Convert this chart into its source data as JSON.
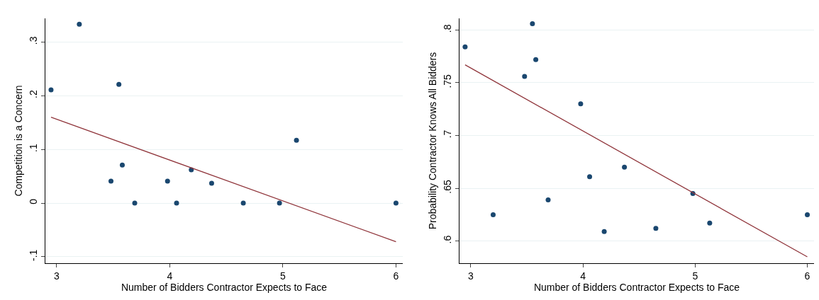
{
  "chart_data": [
    {
      "type": "scatter",
      "xlabel": "Number of Bidders Contractor Expects to Face",
      "ylabel": "Competition is a Concern",
      "xlim": [
        2.9,
        6.06
      ],
      "ylim": [
        -0.112,
        0.344
      ],
      "xticks": [
        3,
        4,
        5,
        6
      ],
      "yticks": [
        {
          "value": -0.1,
          "label": "-.1"
        },
        0,
        {
          "value": 0.1,
          "label": ".1"
        },
        {
          "value": 0.2,
          "label": ".2"
        },
        {
          "value": 0.3,
          "label": ".3"
        }
      ],
      "grid": "y",
      "series": [
        {
          "marker": "circle",
          "color": "#1a476f",
          "x": [
            2.95,
            3.2,
            3.48,
            3.55,
            3.58,
            3.69,
            3.98,
            4.06,
            4.19,
            4.37,
            4.65,
            4.97,
            5.12,
            6.0
          ],
          "values": [
            0.211,
            0.333,
            0.041,
            0.221,
            0.071,
            0,
            0.041,
            0,
            0.062,
            0.037,
            0,
            0,
            0.117,
            0
          ]
        },
        {
          "type": "line",
          "marker": "none",
          "color": "#90353b",
          "x": [
            2.95,
            6.0
          ],
          "values": [
            0.16,
            -0.072
          ]
        }
      ]
    },
    {
      "type": "scatter",
      "xlabel": "Number of Bidders Contractor Expects to Face",
      "ylabel": "Probability Contractor Knows All Bidders",
      "xlim": [
        2.9,
        6.06
      ],
      "ylim": [
        0.579,
        0.811
      ],
      "xticks": [
        3,
        4,
        5,
        6
      ],
      "yticks": [
        {
          "value": 0.6,
          "label": ".6"
        },
        {
          "value": 0.65,
          "label": ".65"
        },
        {
          "value": 0.7,
          "label": ".7"
        },
        {
          "value": 0.75,
          "label": ".75"
        },
        {
          "value": 0.8,
          "label": ".8"
        }
      ],
      "grid": "y",
      "series": [
        {
          "marker": "circle",
          "color": "#1a476f",
          "x": [
            2.95,
            3.2,
            3.48,
            3.55,
            3.58,
            3.69,
            3.98,
            4.06,
            4.19,
            4.37,
            4.65,
            4.98,
            5.13,
            6.0
          ],
          "values": [
            0.784,
            0.625,
            0.756,
            0.806,
            0.772,
            0.639,
            0.73,
            0.661,
            0.609,
            0.67,
            0.612,
            0.645,
            0.617,
            0.625
          ]
        },
        {
          "type": "line",
          "marker": "none",
          "color": "#90353b",
          "x": [
            2.95,
            6.0
          ],
          "values": [
            0.767,
            0.585
          ]
        }
      ]
    }
  ]
}
